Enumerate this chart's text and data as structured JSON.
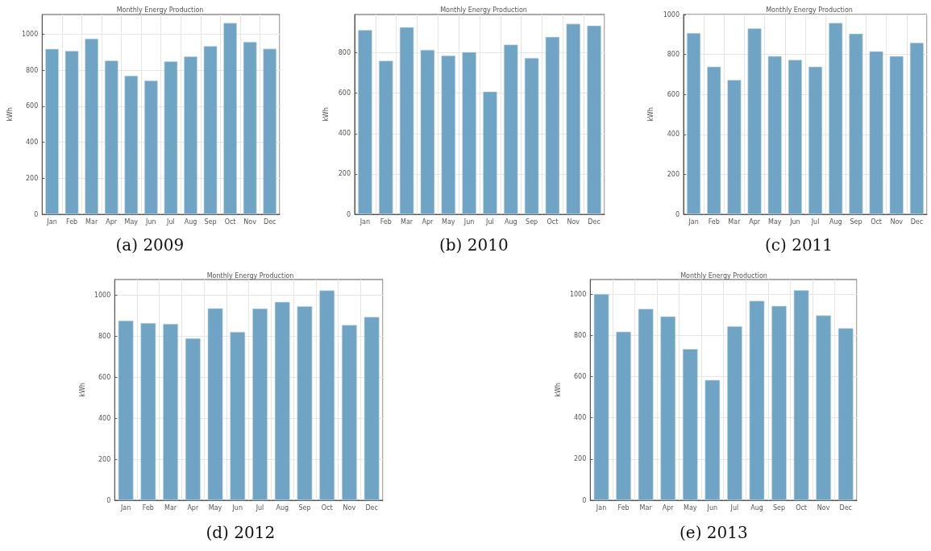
{
  "chart_data": [
    {
      "type": "bar",
      "title": "Monthly Energy Production",
      "ylabel": "kWh",
      "annotations": [
        "(a) 2009"
      ],
      "categories": [
        "Jan",
        "Feb",
        "Mar",
        "Apr",
        "May",
        "Jun",
        "Jul",
        "Aug",
        "Sep",
        "Oct",
        "Nov",
        "Dec"
      ],
      "color": "#6fa4c5",
      "values": [
        919,
        908,
        976,
        854,
        770,
        743,
        850,
        877,
        935,
        1063,
        958,
        920
      ],
      "ylim": [
        0,
        1110
      ],
      "yticks": [
        0,
        200,
        400,
        600,
        800,
        1000
      ],
      "grid": true
    },
    {
      "type": "bar",
      "title": "Monthly Energy Production",
      "ylabel": "kWh",
      "annotations": [
        "(b) 2010"
      ],
      "categories": [
        "Jan",
        "Feb",
        "Mar",
        "Apr",
        "May",
        "Jun",
        "Jul",
        "Aug",
        "Sep",
        "Oct",
        "Nov",
        "Dec"
      ],
      "color": "#6fa4c5",
      "values": [
        913,
        761,
        927,
        815,
        787,
        804,
        608,
        841,
        775,
        879,
        944,
        935
      ],
      "ylim": [
        0,
        990
      ],
      "yticks": [
        0,
        200,
        400,
        600,
        800
      ],
      "grid": true
    },
    {
      "type": "bar",
      "title": "Monthly Energy Production",
      "ylabel": "kWh",
      "annotations": [
        "(c) 2011"
      ],
      "categories": [
        "Jan",
        "Feb",
        "Mar",
        "Apr",
        "May",
        "Jun",
        "Jul",
        "Aug",
        "Sep",
        "Oct",
        "Nov",
        "Dec"
      ],
      "color": "#6fa4c5",
      "values": [
        907,
        739,
        673,
        931,
        792,
        773,
        739,
        958,
        904,
        816,
        792,
        859
      ],
      "ylim": [
        0,
        1000
      ],
      "yticks": [
        0,
        200,
        400,
        600,
        800,
        1000
      ],
      "grid": true
    },
    {
      "type": "bar",
      "title": "Monthly Energy Production",
      "ylabel": "kWh",
      "annotations": [
        "(d) 2012"
      ],
      "categories": [
        "Jan",
        "Feb",
        "Mar",
        "Apr",
        "May",
        "Jun",
        "Jul",
        "Aug",
        "Sep",
        "Oct",
        "Nov",
        "Dec"
      ],
      "color": "#6fa4c5",
      "values": [
        875,
        863,
        859,
        789,
        935,
        820,
        934,
        966,
        945,
        1022,
        854,
        893
      ],
      "ylim": [
        0,
        1075
      ],
      "yticks": [
        0,
        200,
        400,
        600,
        800,
        1000
      ],
      "grid": true
    },
    {
      "type": "bar",
      "title": "Monthly Energy Production",
      "ylabel": "kWh",
      "annotations": [
        "(e) 2013"
      ],
      "categories": [
        "Jan",
        "Feb",
        "Mar",
        "Apr",
        "May",
        "Jun",
        "Jul",
        "Aug",
        "Sep",
        "Oct",
        "Nov",
        "Dec"
      ],
      "color": "#6fa4c5",
      "values": [
        1001,
        818,
        929,
        892,
        734,
        584,
        844,
        968,
        943,
        1019,
        897,
        835
      ],
      "ylim": [
        0,
        1071
      ],
      "yticks": [
        0,
        200,
        400,
        600,
        800,
        1000
      ],
      "grid": true
    }
  ]
}
